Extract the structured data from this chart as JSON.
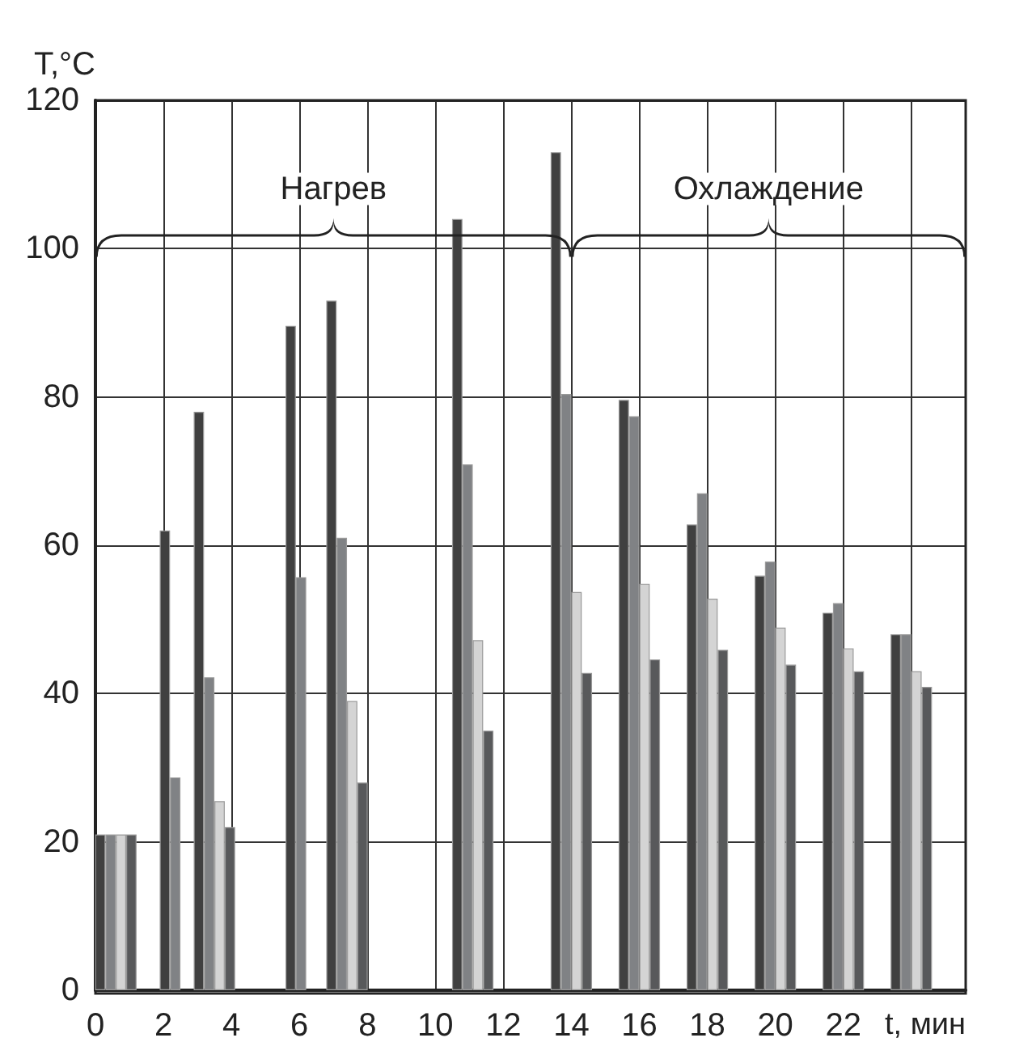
{
  "chart_data": {
    "type": "bar",
    "ylabel": "T,°C",
    "xlabel": "t, мин",
    "x": [
      0.6,
      2.5,
      3.5,
      6.2,
      7.4,
      11.1,
      14,
      16,
      18,
      20,
      22,
      24
    ],
    "series": [
      {
        "color": "#404040",
        "values": [
          21,
          62,
          78,
          89.6,
          93,
          104,
          113,
          79.6,
          62.8,
          55.9,
          50.9,
          48
        ]
      },
      {
        "color": "#808285",
        "values": [
          21,
          28.7,
          42.2,
          55.7,
          61,
          70.9,
          80.4,
          77.4,
          67,
          57.8,
          52.2,
          48
        ]
      },
      {
        "color": "#d4d4d4",
        "values": [
          21,
          null,
          25.5,
          null,
          39,
          47.2,
          53.7,
          54.8,
          52.8,
          48.9,
          46.1,
          43
        ]
      },
      {
        "color": "#58595b",
        "values": [
          21,
          null,
          22,
          null,
          28,
          35,
          42.8,
          44.6,
          45.9,
          43.9,
          43,
          40.9
        ]
      }
    ],
    "xlim": [
      0,
      25.6
    ],
    "xticks": [
      0,
      2,
      4,
      6,
      8,
      10,
      12,
      14,
      16,
      18,
      20,
      22,
      {
        "value": 24,
        "label": null
      }
    ],
    "ylim": [
      0,
      120
    ],
    "yticks": [
      0,
      20,
      40,
      60,
      80,
      100,
      120
    ],
    "annotations": [
      "Нагрев",
      "Охлаждение"
    ],
    "grid": true
  }
}
